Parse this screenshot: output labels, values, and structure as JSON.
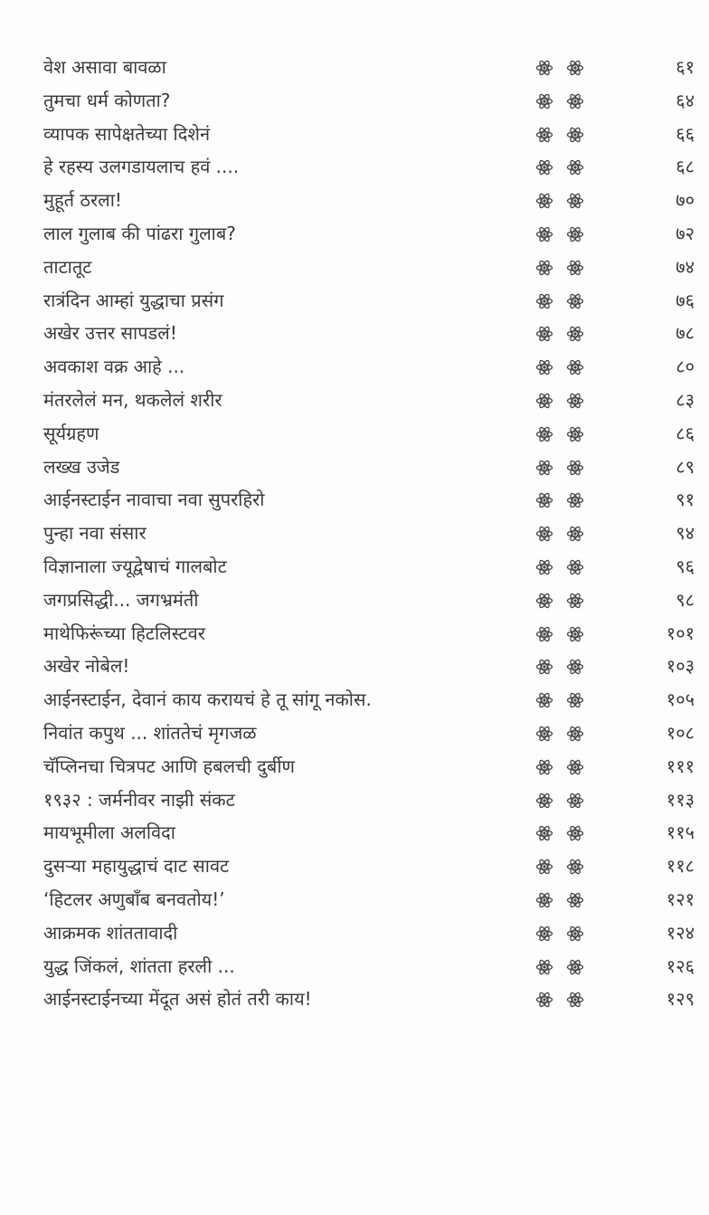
{
  "separator_icon": "atom-icon",
  "entries": [
    {
      "title": "वेश असावा बावळा",
      "page": "६१"
    },
    {
      "title": "तुमचा धर्म कोणता?",
      "page": "६४"
    },
    {
      "title": "व्यापक सापेक्षतेच्या दिशेनं",
      "page": "६६"
    },
    {
      "title": "हे रहस्य उलगडायलाच हवं ....",
      "page": "६८"
    },
    {
      "title": "मुहूर्त ठरला!",
      "page": "७०"
    },
    {
      "title": "लाल गुलाब की पांढरा गुलाब?",
      "page": "७२"
    },
    {
      "title": "ताटातूट",
      "page": "७४"
    },
    {
      "title": "रात्रंदिन आम्हां युद्धाचा प्रसंग",
      "page": "७६"
    },
    {
      "title": "अखेर उत्तर सापडलं!",
      "page": "७८"
    },
    {
      "title": "अवकाश वक्र आहे ...",
      "page": "८०"
    },
    {
      "title": "मंतरलेलं मन, थकलेलं शरीर",
      "page": "८३"
    },
    {
      "title": "सूर्यग्रहण",
      "page": "८६"
    },
    {
      "title": "लख्ख उजेड",
      "page": "८९"
    },
    {
      "title": "आईनस्टाईन नावाचा नवा सुपरहिरो",
      "page": "९१"
    },
    {
      "title": "पुन्हा नवा संसार",
      "page": "९४"
    },
    {
      "title": "विज्ञानाला ज्यूद्वेषाचं गालबोट",
      "page": "९६"
    },
    {
      "title": " जगप्रसिद्धी... जगभ्रमंती",
      "page": "९८"
    },
    {
      "title": "माथेफिरूंच्या हिटलिस्टवर",
      "page": "१०१"
    },
    {
      "title": "अखेर नोबेल!",
      "page": "१०३"
    },
    {
      "title": "आईनस्टाईन, देवानं काय करायचं हे तू सांगू नकोस.",
      "page": "१०५"
    },
    {
      "title": "निवांत कपुथ ... शांततेचं मृगजळ",
      "page": "१०८"
    },
    {
      "title": "चॅप्लिनचा चित्रपट आणि हबलची दुर्बीण",
      "page": "१११"
    },
    {
      "title": "१९३२ : जर्मनीवर नाझी संकट",
      "page": "११३"
    },
    {
      "title": "मायभूमीला अलविदा",
      "page": "११५"
    },
    {
      "title": "दुसऱ्या महायुद्धाचं दाट सावट",
      "page": "११८"
    },
    {
      "title": "‘हिटलर अणुबाँब बनवतोय!’",
      "page": "१२१"
    },
    {
      "title": "आक्रमक शांततावादी",
      "page": "१२४"
    },
    {
      "title": "युद्ध जिंकलं, शांतता हरली ...",
      "page": "१२६"
    },
    {
      "title": "आईनस्टाईनच्या मेंदूत असं होतं तरी काय!",
      "page": "१२९"
    }
  ]
}
